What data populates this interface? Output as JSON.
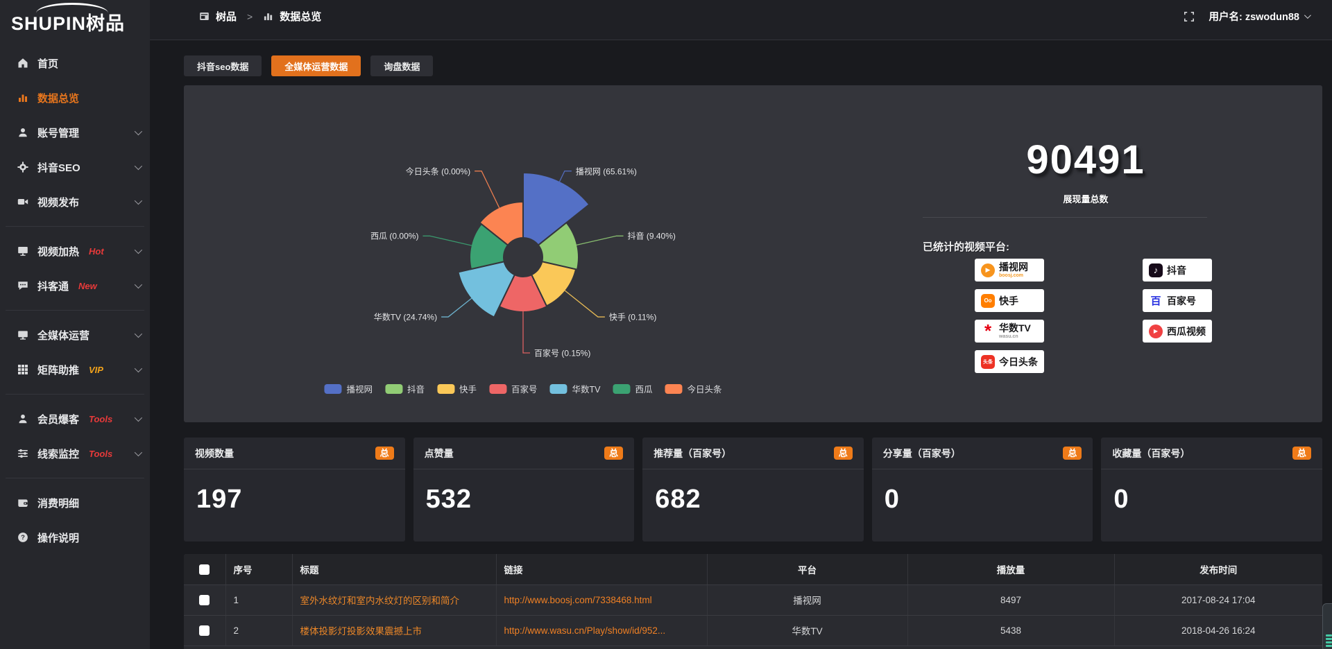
{
  "brand": {
    "logo": "SHUPIN树品"
  },
  "topbar": {
    "breadcrumb": [
      {
        "icon": "window-icon",
        "label": "树品"
      },
      {
        "icon": "chart-icon",
        "label": "数据总览"
      }
    ],
    "breadcrumb_separator": ">",
    "user_prefix": "用户名:",
    "username": "zswodun88"
  },
  "sidebar": {
    "items": [
      {
        "icon": "home-icon",
        "label": "首页"
      },
      {
        "icon": "bar-chart-icon",
        "label": "数据总览",
        "active": true
      },
      {
        "icon": "user-icon",
        "label": "账号管理",
        "chevron": true
      },
      {
        "icon": "gear-icon",
        "label": "抖音SEO",
        "chevron": true
      },
      {
        "icon": "video-icon",
        "label": "视频发布",
        "chevron": true,
        "divider_after": true
      },
      {
        "icon": "screen-icon",
        "label": "视频加热",
        "badge": "Hot",
        "badge_color": "#e83a3a",
        "chevron": true
      },
      {
        "icon": "chat-icon",
        "label": "抖客通",
        "badge": "New",
        "badge_color": "#e83a3a",
        "chevron": true,
        "divider_after": true
      },
      {
        "icon": "monitor-icon",
        "label": "全媒体运营",
        "chevron": true
      },
      {
        "icon": "grid-icon",
        "label": "矩阵助推",
        "badge": "VIP",
        "badge_color": "#f2a31b",
        "chevron": true,
        "divider_after": true
      },
      {
        "icon": "member-icon",
        "label": "会员爆客",
        "badge": "Tools",
        "badge_color": "#e83a3a",
        "chevron": true
      },
      {
        "icon": "sliders-icon",
        "label": "线索监控",
        "badge": "Tools",
        "badge_color": "#e83a3a",
        "chevron": true,
        "divider_after": true
      },
      {
        "icon": "wallet-icon",
        "label": "消费明细"
      },
      {
        "icon": "question-icon",
        "label": "操作说明"
      }
    ]
  },
  "tabs": [
    {
      "label": "抖音seo数据",
      "active": false
    },
    {
      "label": "全媒体运营数据",
      "active": true
    },
    {
      "label": "询盘数据",
      "active": false
    }
  ],
  "chart_data": {
    "type": "pie",
    "variant": "nightingale-rose",
    "legend_position": "bottom",
    "inner_radius": 28,
    "items": [
      {
        "name": "播视网",
        "pct": 65.61,
        "color": "#5470c6",
        "radius": 122
      },
      {
        "name": "抖音",
        "pct": 9.4,
        "color": "#91cc75",
        "radius": 80
      },
      {
        "name": "快手",
        "pct": 0.11,
        "color": "#fac858",
        "radius": 78
      },
      {
        "name": "百家号",
        "pct": 0.15,
        "color": "#ee6666",
        "radius": 79
      },
      {
        "name": "华数TV",
        "pct": 24.74,
        "color": "#73c0de",
        "radius": 96
      },
      {
        "name": "西瓜",
        "pct": 0.0,
        "color": "#3ba272",
        "radius": 77
      },
      {
        "name": "今日头条",
        "pct": 0.0,
        "color": "#fc8452",
        "radius": 80
      }
    ]
  },
  "summary": {
    "total_value": "90491",
    "total_label": "展现量总数",
    "platforms_title": "已统计的视频平台:",
    "platform_badges_left": [
      {
        "icon": "boosj-icon",
        "label": "播视网",
        "sub": "boosj.com",
        "sub_color": "#f59a23"
      },
      {
        "icon": "kuaishou-icon",
        "label": "快手"
      },
      {
        "icon": "wasu-icon",
        "label": "华数TV",
        "sub": "wasu.cn",
        "sub_color": "#999999"
      },
      {
        "icon": "toutiao-icon",
        "label": "今日头条"
      }
    ],
    "platform_badges_right": [
      {
        "icon": "douyin-icon",
        "label": "抖音"
      },
      {
        "icon": "baijiahao-icon",
        "label": "百家号"
      },
      {
        "icon": "xigua-icon",
        "label": "西瓜视频"
      }
    ]
  },
  "stat_cards": [
    {
      "title": "视频数量",
      "badge": "总",
      "value": "197"
    },
    {
      "title": "点赞量",
      "badge": "总",
      "value": "532"
    },
    {
      "title": "推荐量（百家号）",
      "badge": "总",
      "value": "682"
    },
    {
      "title": "分享量（百家号）",
      "badge": "总",
      "value": "0"
    },
    {
      "title": "收藏量（百家号）",
      "badge": "总",
      "value": "0"
    }
  ],
  "table": {
    "headers": [
      "序号",
      "标题",
      "链接",
      "平台",
      "播放量",
      "发布时间"
    ],
    "rows": [
      {
        "num": "1",
        "title": "室外水纹灯和室内水纹灯的区别和简介",
        "link": "http://www.boosj.com/7338468.html",
        "platform": "播视网",
        "plays": "8497",
        "time": "2017-08-24 17:04"
      },
      {
        "num": "2",
        "title": "楼体投影灯投影效果震撼上市",
        "link": "http://www.wasu.cn/Play/show/id/952...",
        "platform": "华数TV",
        "plays": "5438",
        "time": "2018-04-26 16:24"
      }
    ]
  },
  "colors": {
    "accent": "#e8761d",
    "tab_active": "#e2711d",
    "badge_total": "#ef7b19",
    "link_orange": "#f08024",
    "panel_bg": "#34353b"
  }
}
